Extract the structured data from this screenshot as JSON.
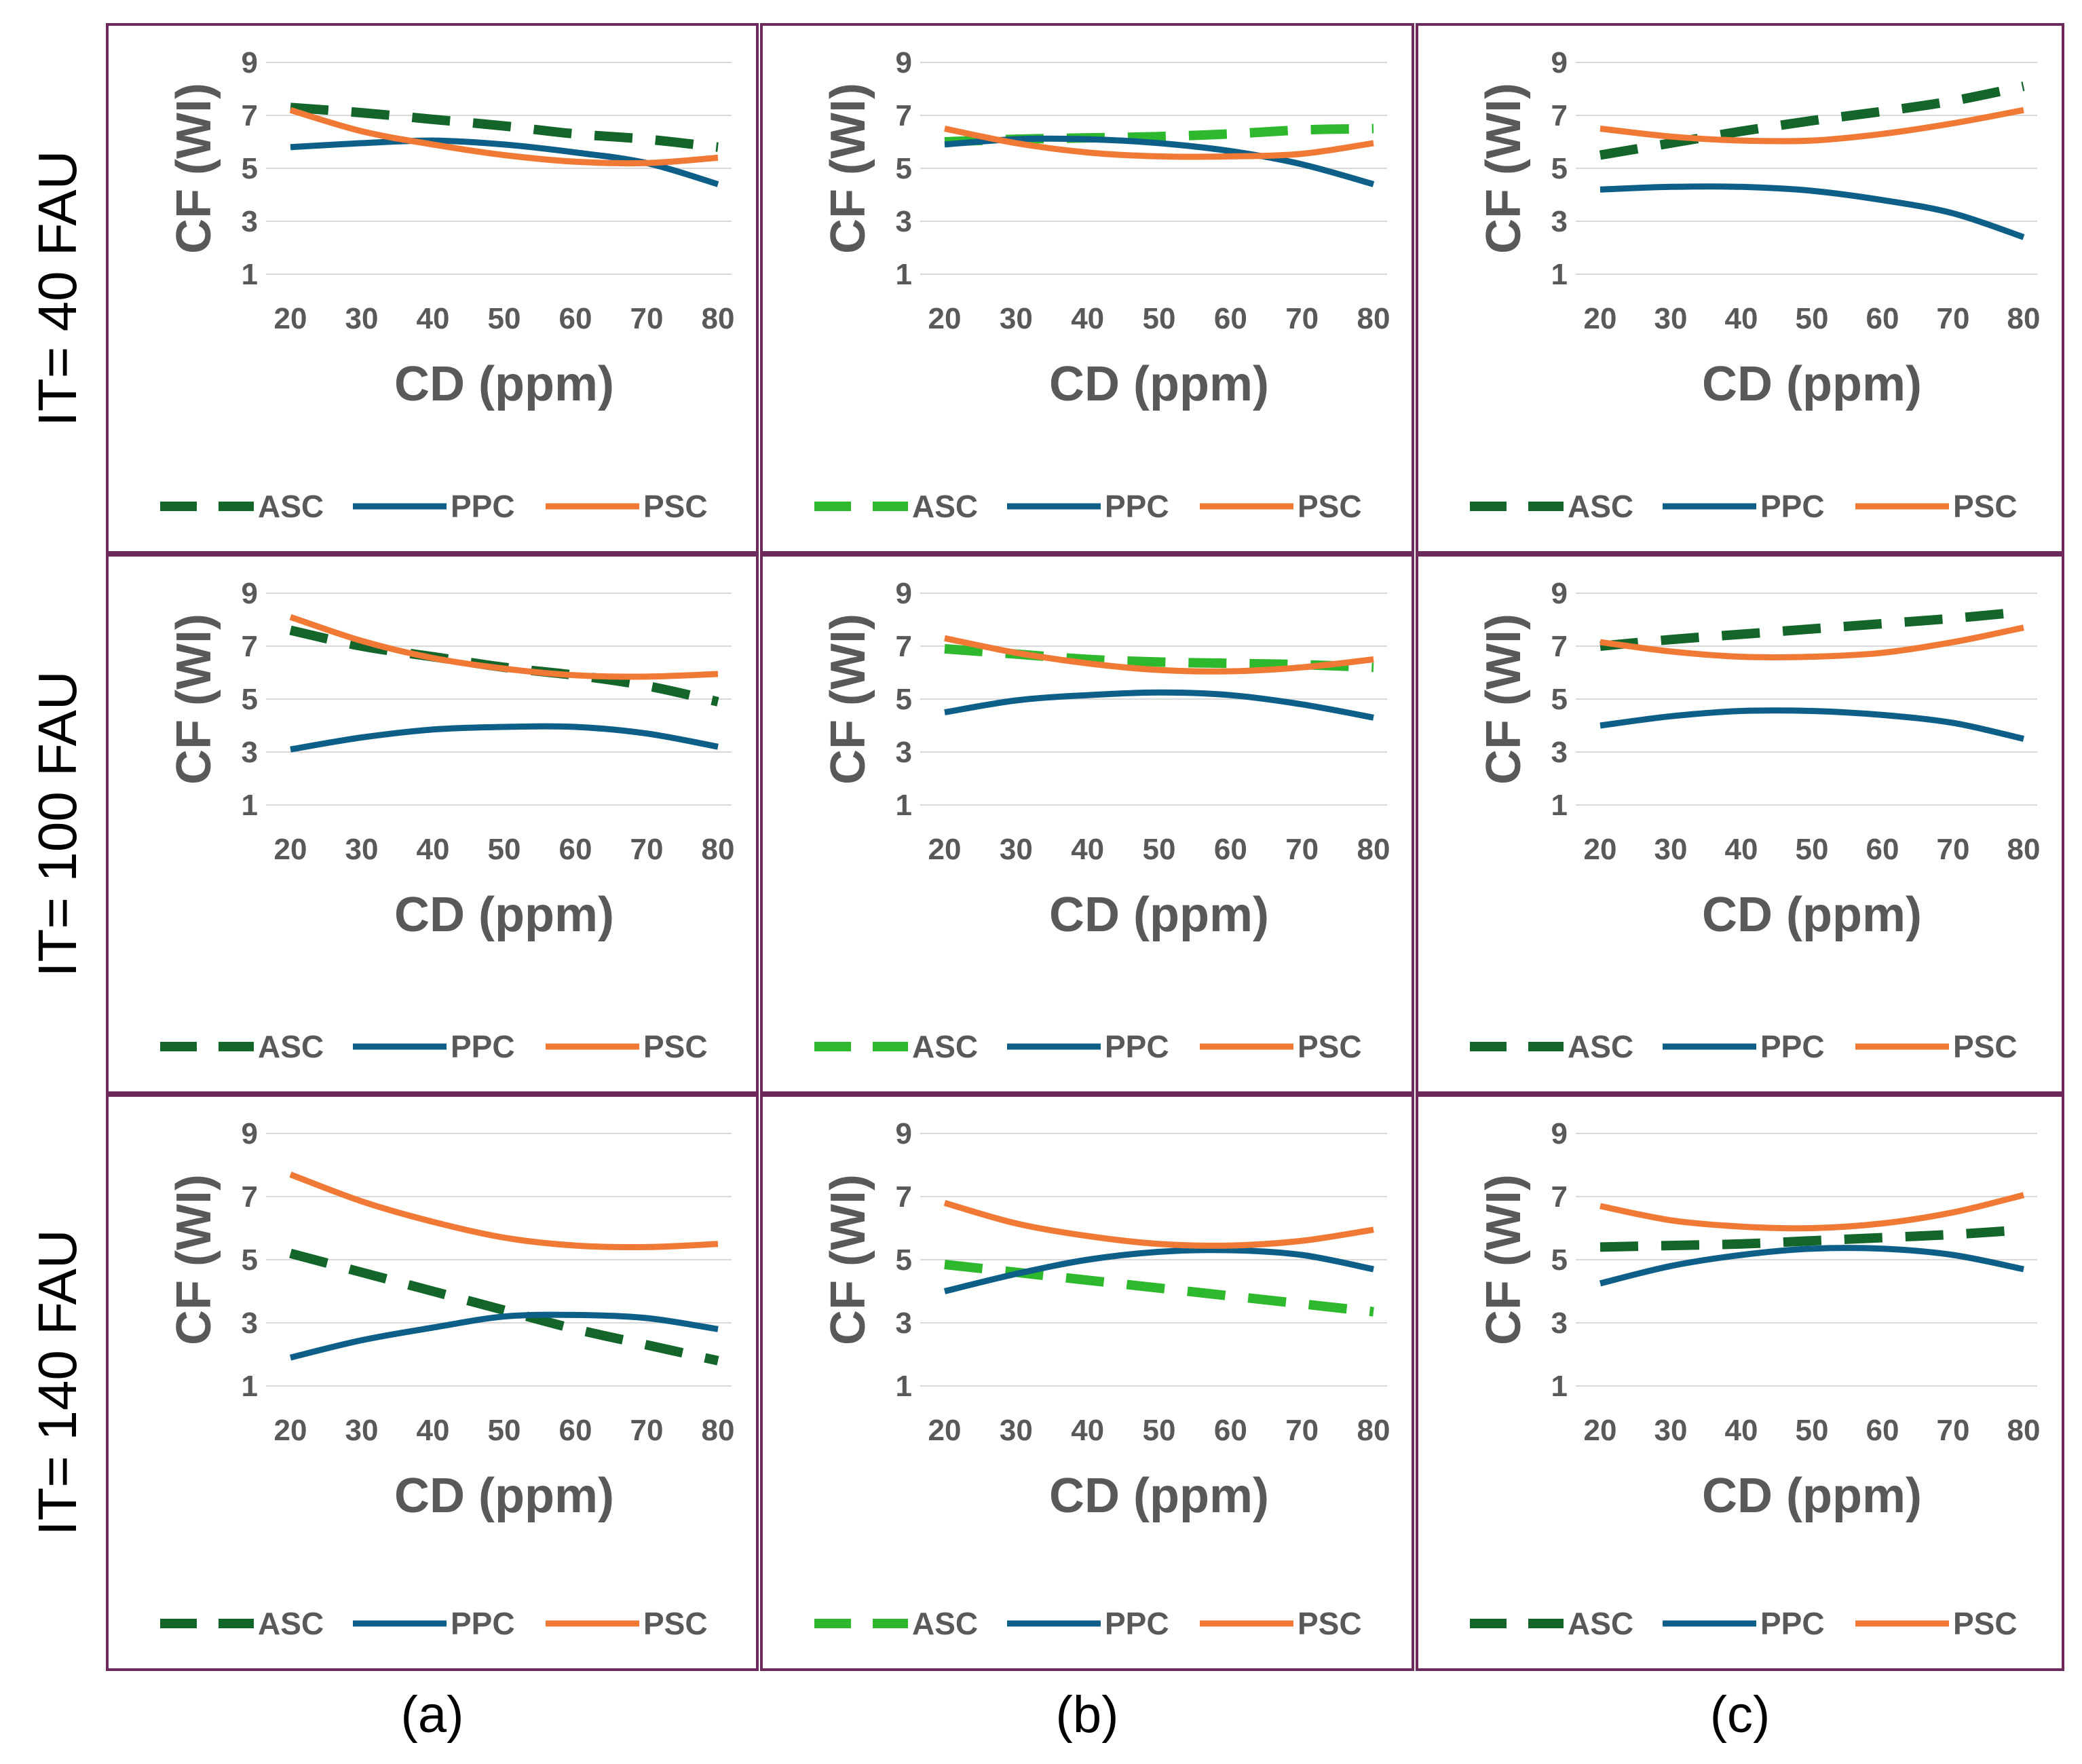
{
  "figure": {
    "row_labels": [
      "IT= 40 FAU",
      "IT= 100 FAU",
      "IT= 140 FAU"
    ],
    "column_labels": [
      "(a)",
      "(b)",
      "(c)"
    ]
  },
  "colors": {
    "ASC_dark": "#13652a",
    "ASC_light": "#2eb82e",
    "PPC": "#0e5f87",
    "PSC": "#f07a35",
    "frame": "#6b2a5a",
    "grid": "#d9d9d9",
    "tick": "#595959"
  },
  "chart_data": [
    {
      "type": "line",
      "row_label": "IT= 40 FAU",
      "column_label": "(a)",
      "x": [
        20,
        30,
        40,
        50,
        60,
        70,
        80
      ],
      "xlabel": "CD (ppm)",
      "ylabel": "CF (WI)",
      "yticks": [
        1,
        3,
        5,
        7,
        9
      ],
      "ylim": [
        1,
        9
      ],
      "legend": "bottom",
      "series": [
        {
          "name": "ASC",
          "style": "dashed",
          "color": "#13652a",
          "values": [
            7.3,
            7.1,
            6.85,
            6.6,
            6.3,
            6.1,
            5.8
          ]
        },
        {
          "name": "PPC",
          "style": "solid",
          "color": "#0e5f87",
          "values": [
            5.8,
            5.95,
            6.05,
            5.9,
            5.6,
            5.2,
            4.4
          ]
        },
        {
          "name": "PSC",
          "style": "solid",
          "color": "#f07a35",
          "values": [
            7.2,
            6.4,
            5.9,
            5.5,
            5.25,
            5.2,
            5.4
          ]
        }
      ]
    },
    {
      "type": "line",
      "row_label": "IT= 40 FAU",
      "column_label": "(b)",
      "x": [
        20,
        30,
        40,
        50,
        60,
        70,
        80
      ],
      "xlabel": "CD (ppm)",
      "ylabel": "CF (WI)",
      "yticks": [
        1,
        3,
        5,
        7,
        9
      ],
      "ylim": [
        1,
        9
      ],
      "legend": "bottom",
      "series": [
        {
          "name": "ASC",
          "style": "dashed",
          "color": "#2eb82e",
          "values": [
            6.0,
            6.1,
            6.15,
            6.2,
            6.3,
            6.45,
            6.5
          ]
        },
        {
          "name": "PPC",
          "style": "solid",
          "color": "#0e5f87",
          "values": [
            5.9,
            6.1,
            6.1,
            5.95,
            5.65,
            5.15,
            4.4
          ]
        },
        {
          "name": "PSC",
          "style": "solid",
          "color": "#f07a35",
          "values": [
            6.5,
            5.95,
            5.6,
            5.45,
            5.45,
            5.55,
            5.95
          ]
        }
      ]
    },
    {
      "type": "line",
      "row_label": "IT= 40 FAU",
      "column_label": "(c)",
      "x": [
        20,
        30,
        40,
        50,
        60,
        70,
        80
      ],
      "xlabel": "CD (ppm)",
      "ylabel": "CF (WI)",
      "yticks": [
        1,
        3,
        5,
        7,
        9
      ],
      "ylim": [
        1,
        9
      ],
      "legend": "bottom",
      "series": [
        {
          "name": "ASC",
          "style": "dashed",
          "color": "#13652a",
          "values": [
            5.5,
            5.95,
            6.4,
            6.8,
            7.15,
            7.55,
            8.1
          ]
        },
        {
          "name": "PPC",
          "style": "solid",
          "color": "#0e5f87",
          "values": [
            4.2,
            4.3,
            4.3,
            4.15,
            3.8,
            3.3,
            2.4
          ]
        },
        {
          "name": "PSC",
          "style": "solid",
          "color": "#f07a35",
          "values": [
            6.5,
            6.2,
            6.05,
            6.05,
            6.3,
            6.7,
            7.2
          ]
        }
      ]
    },
    {
      "type": "line",
      "row_label": "IT= 100 FAU",
      "column_label": "(a)",
      "x": [
        20,
        30,
        40,
        50,
        60,
        70,
        80
      ],
      "xlabel": "CD (ppm)",
      "ylabel": "CF (WI)",
      "yticks": [
        1,
        3,
        5,
        7,
        9
      ],
      "ylim": [
        1,
        9
      ],
      "legend": "bottom",
      "series": [
        {
          "name": "ASC",
          "style": "dashed",
          "color": "#13652a",
          "values": [
            7.6,
            7.0,
            6.6,
            6.2,
            5.9,
            5.5,
            4.9
          ]
        },
        {
          "name": "PPC",
          "style": "solid",
          "color": "#0e5f87",
          "values": [
            3.1,
            3.55,
            3.85,
            3.95,
            3.95,
            3.7,
            3.2
          ]
        },
        {
          "name": "PSC",
          "style": "solid",
          "color": "#f07a35",
          "values": [
            8.1,
            7.2,
            6.55,
            6.15,
            5.9,
            5.85,
            5.95
          ]
        }
      ]
    },
    {
      "type": "line",
      "row_label": "IT= 100 FAU",
      "column_label": "(b)",
      "x": [
        20,
        30,
        40,
        50,
        60,
        70,
        80
      ],
      "xlabel": "CD (ppm)",
      "ylabel": "CF (WI)",
      "yticks": [
        1,
        3,
        5,
        7,
        9
      ],
      "ylim": [
        1,
        9
      ],
      "legend": "bottom",
      "series": [
        {
          "name": "ASC",
          "style": "dashed",
          "color": "#2eb82e",
          "values": [
            6.9,
            6.7,
            6.5,
            6.4,
            6.35,
            6.3,
            6.2
          ]
        },
        {
          "name": "PPC",
          "style": "solid",
          "color": "#0e5f87",
          "values": [
            4.5,
            4.95,
            5.15,
            5.25,
            5.15,
            4.8,
            4.3
          ]
        },
        {
          "name": "PSC",
          "style": "solid",
          "color": "#f07a35",
          "values": [
            7.3,
            6.75,
            6.35,
            6.1,
            6.05,
            6.2,
            6.5
          ]
        }
      ]
    },
    {
      "type": "line",
      "row_label": "IT= 100 FAU",
      "column_label": "(c)",
      "x": [
        20,
        30,
        40,
        50,
        60,
        70,
        80
      ],
      "xlabel": "CD (ppm)",
      "ylabel": "CF (WI)",
      "yticks": [
        1,
        3,
        5,
        7,
        9
      ],
      "ylim": [
        1,
        9
      ],
      "legend": "bottom",
      "series": [
        {
          "name": "ASC",
          "style": "dashed",
          "color": "#13652a",
          "values": [
            7.0,
            7.25,
            7.45,
            7.65,
            7.85,
            8.05,
            8.3
          ]
        },
        {
          "name": "PPC",
          "style": "solid",
          "color": "#0e5f87",
          "values": [
            4.0,
            4.35,
            4.55,
            4.55,
            4.4,
            4.1,
            3.5
          ]
        },
        {
          "name": "PSC",
          "style": "solid",
          "color": "#f07a35",
          "values": [
            7.15,
            6.8,
            6.6,
            6.6,
            6.75,
            7.15,
            7.7
          ]
        }
      ]
    },
    {
      "type": "line",
      "row_label": "IT= 140 FAU",
      "column_label": "(a)",
      "x": [
        20,
        30,
        40,
        50,
        60,
        70,
        80
      ],
      "xlabel": "CD (ppm)",
      "ylabel": "CF (WI)",
      "yticks": [
        1,
        3,
        5,
        7,
        9
      ],
      "ylim": [
        1,
        9
      ],
      "legend": "bottom",
      "series": [
        {
          "name": "ASC",
          "style": "dashed",
          "color": "#13652a",
          "values": [
            5.2,
            4.6,
            4.0,
            3.4,
            2.8,
            2.3,
            1.8
          ]
        },
        {
          "name": "PPC",
          "style": "solid",
          "color": "#0e5f87",
          "values": [
            1.9,
            2.45,
            2.85,
            3.2,
            3.25,
            3.15,
            2.8
          ]
        },
        {
          "name": "PSC",
          "style": "solid",
          "color": "#f07a35",
          "values": [
            7.7,
            6.85,
            6.2,
            5.7,
            5.45,
            5.4,
            5.5
          ]
        }
      ]
    },
    {
      "type": "line",
      "row_label": "IT= 140 FAU",
      "column_label": "(b)",
      "x": [
        20,
        30,
        40,
        50,
        60,
        70,
        80
      ],
      "xlabel": "CD (ppm)",
      "ylabel": "CF (WI)",
      "yticks": [
        1,
        3,
        5,
        7,
        9
      ],
      "ylim": [
        1,
        9
      ],
      "legend": "bottom",
      "series": [
        {
          "name": "ASC",
          "style": "dashed",
          "color": "#2eb82e",
          "values": [
            4.85,
            4.6,
            4.35,
            4.1,
            3.85,
            3.6,
            3.35
          ]
        },
        {
          "name": "PPC",
          "style": "solid",
          "color": "#0e5f87",
          "values": [
            4.0,
            4.55,
            5.0,
            5.25,
            5.3,
            5.15,
            4.7
          ]
        },
        {
          "name": "PSC",
          "style": "solid",
          "color": "#f07a35",
          "values": [
            6.8,
            6.15,
            5.75,
            5.5,
            5.45,
            5.6,
            5.95
          ]
        }
      ]
    },
    {
      "type": "line",
      "row_label": "IT= 140 FAU",
      "column_label": "(c)",
      "x": [
        20,
        30,
        40,
        50,
        60,
        70,
        80
      ],
      "xlabel": "CD (ppm)",
      "ylabel": "CF (WI)",
      "yticks": [
        1,
        3,
        5,
        7,
        9
      ],
      "ylim": [
        1,
        9
      ],
      "legend": "bottom",
      "series": [
        {
          "name": "ASC",
          "style": "dashed",
          "color": "#13652a",
          "values": [
            5.4,
            5.45,
            5.5,
            5.6,
            5.7,
            5.8,
            5.95
          ]
        },
        {
          "name": "PPC",
          "style": "solid",
          "color": "#0e5f87",
          "values": [
            4.25,
            4.8,
            5.15,
            5.35,
            5.35,
            5.15,
            4.7
          ]
        },
        {
          "name": "PSC",
          "style": "solid",
          "color": "#f07a35",
          "values": [
            6.7,
            6.25,
            6.05,
            6.0,
            6.15,
            6.5,
            7.05
          ]
        }
      ]
    }
  ]
}
